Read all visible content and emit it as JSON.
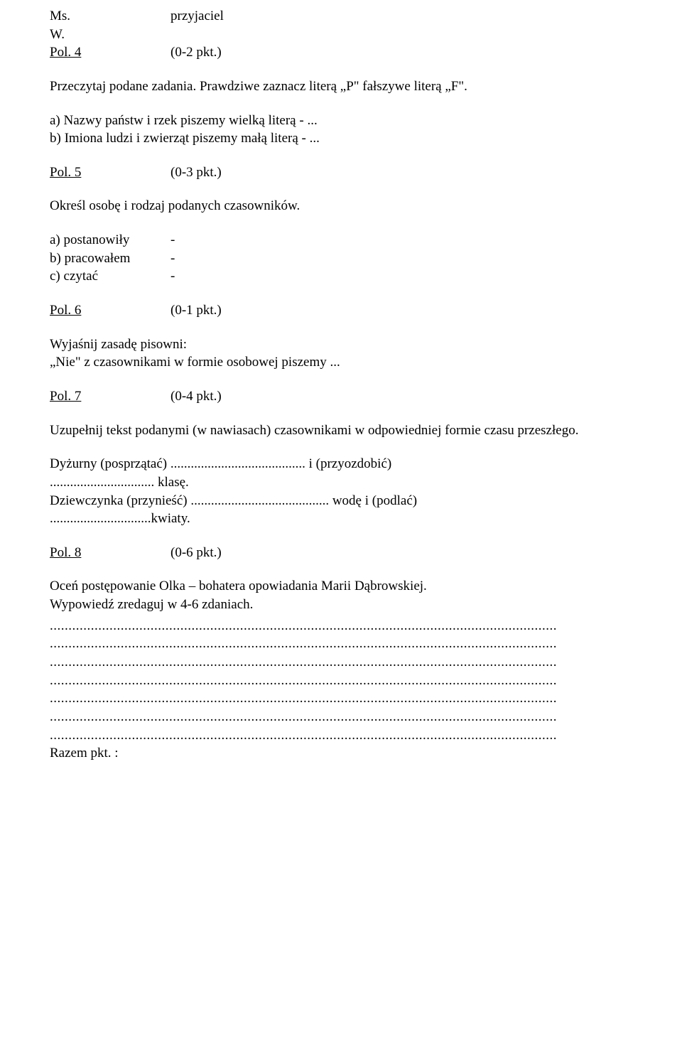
{
  "header": {
    "left1": "Ms.",
    "left2": "W.",
    "right1": "przyjaciel"
  },
  "pol4": {
    "label": "Pol. 4",
    "points": "(0-2 pkt.)",
    "instr": "Przeczytaj podane zadania. Prawdziwe zaznacz literą „P\" fałszywe literą „F\".",
    "a": "a)  Nazwy państw i rzek piszemy wielką literą - ...",
    "b": "b)  Imiona ludzi i zwierząt piszemy małą literą - ..."
  },
  "pol5": {
    "label": "Pol. 5",
    "points": "(0-3 pkt.)",
    "instr": "Określ osobę i rodzaj podanych czasowników.",
    "a_l": "a)  postanowiły",
    "a_r": "-",
    "b_l": "b)  pracowałem",
    "b_r": "-",
    "c_l": "c)  czytać",
    "c_r": "-"
  },
  "pol6": {
    "label": "Pol. 6",
    "points": "(0-1 pkt.)",
    "line1": "Wyjaśnij zasadę pisowni:",
    "line2": "„Nie\" z czasownikami w formie osobowej piszemy ..."
  },
  "pol7": {
    "label": "Pol. 7",
    "points": "(0-4 pkt.)",
    "instr": "Uzupełnij tekst podanymi (w nawiasach) czasownikami w odpowiedniej formie czasu przeszłego.",
    "l1": "Dyżurny (posprzątać) ........................................ i (przyozdobić)",
    "l2": "............................... klasę.",
    "l3": "Dziewczynka (przynieść) ......................................... wodę i (podlać)",
    "l4": "..............................kwiaty."
  },
  "pol8": {
    "label": "Pol. 8",
    "points": "(0-6 pkt.)",
    "line1": "Oceń postępowanie Olka – bohatera opowiadania Marii Dąbrowskiej.",
    "line2": "Wypowiedź zredaguj w 4-6 zdaniach.",
    "dots": "........................................................................................................................................",
    "final": "Razem pkt. :"
  }
}
